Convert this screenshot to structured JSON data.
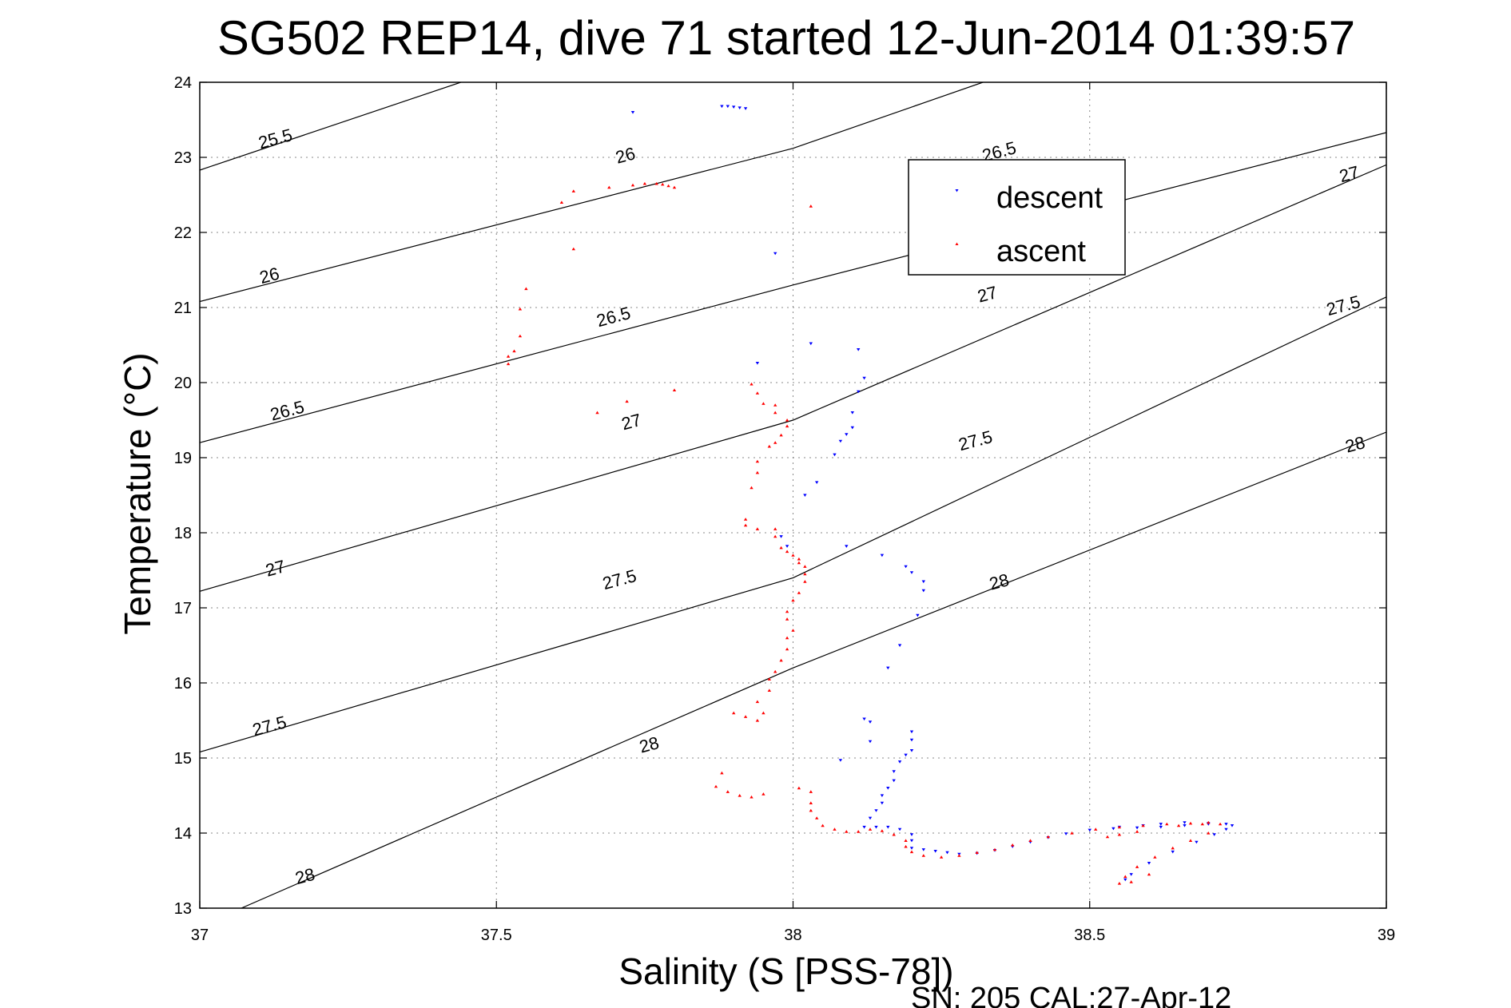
{
  "chart_data": {
    "type": "scatter",
    "title": "SG502 REP14, dive 71 started 12-Jun-2014 01:39:57",
    "xlabel": "Salinity (S [PSS-78])",
    "ylabel": "Temperature (°C)",
    "footer": "SN: 205  CAL:27-Apr-12",
    "xlim": [
      37,
      39
    ],
    "ylim": [
      13,
      24
    ],
    "xticks": [
      "37",
      "37.5",
      "38",
      "38.5",
      "39"
    ],
    "yticks": [
      "13",
      "14",
      "15",
      "16",
      "17",
      "18",
      "19",
      "20",
      "21",
      "22",
      "23",
      "24"
    ],
    "grid": true,
    "legend_position": "top-right",
    "contours": [
      {
        "label": "25.5",
        "values": [
          [
            37,
            22.83
          ],
          [
            37.44,
            24.0
          ]
        ],
        "label_at": [
          37.13,
          23.17
        ]
      },
      {
        "label": "26",
        "values": [
          [
            37,
            21.08
          ],
          [
            38.0,
            23.12
          ],
          [
            38.32,
            24.0
          ]
        ],
        "label_at": [
          37.12,
          21.35
        ]
      },
      {
        "label": "26",
        "values": [],
        "label_at": [
          37.72,
          22.95
        ]
      },
      {
        "label": "26.5",
        "values": [
          [
            37,
            19.2
          ],
          [
            38.0,
            21.3
          ],
          [
            39.0,
            23.33
          ],
          [
            39.0,
            24.0
          ]
        ],
        "label_at": [
          37.15,
          19.55
        ]
      },
      {
        "label": "26.5",
        "values": [],
        "label_at": [
          37.7,
          20.8
        ]
      },
      {
        "label": "26.5",
        "values": [],
        "label_at": [
          38.35,
          23.0
        ]
      },
      {
        "label": "27",
        "values": [
          [
            37,
            17.22
          ],
          [
            38.0,
            19.5
          ],
          [
            39.0,
            22.9
          ]
        ],
        "label_at": [
          37.13,
          17.45
        ]
      },
      {
        "label": "27",
        "values": [],
        "label_at": [
          37.73,
          19.4
        ]
      },
      {
        "label": "27",
        "values": [],
        "label_at": [
          38.33,
          21.1
        ]
      },
      {
        "label": "27",
        "values": [],
        "label_at": [
          38.94,
          22.7
        ]
      },
      {
        "label": "27.5",
        "values": [
          [
            37,
            15.08
          ],
          [
            38.0,
            17.4
          ],
          [
            39.0,
            21.14
          ]
        ],
        "label_at": [
          37.12,
          15.35
        ]
      },
      {
        "label": "27.5",
        "values": [],
        "label_at": [
          37.71,
          17.3
        ]
      },
      {
        "label": "27.5",
        "values": [],
        "label_at": [
          38.31,
          19.15
        ]
      },
      {
        "label": "27.5",
        "values": [],
        "label_at": [
          38.93,
          20.95
        ]
      },
      {
        "label": "28",
        "values": [
          [
            37.07,
            13.0
          ],
          [
            38.0,
            16.2
          ],
          [
            39.0,
            19.34
          ]
        ],
        "label_at": [
          37.18,
          13.35
        ]
      },
      {
        "label": "28",
        "values": [],
        "label_at": [
          37.76,
          15.1
        ]
      },
      {
        "label": "28",
        "values": [],
        "label_at": [
          38.35,
          17.27
        ]
      },
      {
        "label": "28",
        "values": [],
        "label_at": [
          38.95,
          19.1
        ]
      }
    ],
    "series": [
      {
        "name": "descent",
        "color": "#0000ff",
        "marker": "triangle-down",
        "points": [
          [
            37.73,
            23.6
          ],
          [
            37.88,
            23.68
          ],
          [
            37.89,
            23.68
          ],
          [
            37.9,
            23.67
          ],
          [
            37.91,
            23.66
          ],
          [
            37.92,
            23.65
          ],
          [
            37.97,
            21.72
          ],
          [
            38.03,
            20.52
          ],
          [
            38.11,
            20.44
          ],
          [
            38.12,
            20.06
          ],
          [
            38.11,
            19.88
          ],
          [
            38.1,
            19.6
          ],
          [
            38.1,
            19.4
          ],
          [
            38.09,
            19.31
          ],
          [
            38.08,
            19.22
          ],
          [
            38.07,
            19.04
          ],
          [
            38.04,
            18.67
          ],
          [
            38.02,
            18.5
          ],
          [
            37.94,
            20.26
          ],
          [
            37.98,
            17.95
          ],
          [
            37.99,
            17.82
          ],
          [
            38.09,
            17.82
          ],
          [
            38.15,
            17.7
          ],
          [
            38.19,
            17.55
          ],
          [
            38.2,
            17.47
          ],
          [
            38.22,
            17.35
          ],
          [
            38.22,
            17.23
          ],
          [
            38.21,
            16.9
          ],
          [
            38.18,
            16.5
          ],
          [
            38.16,
            16.2
          ],
          [
            38.12,
            15.52
          ],
          [
            38.13,
            15.48
          ],
          [
            38.13,
            15.22
          ],
          [
            38.08,
            14.97
          ],
          [
            38.2,
            15.35
          ],
          [
            38.2,
            15.24
          ],
          [
            38.2,
            15.1
          ],
          [
            38.19,
            15.04
          ],
          [
            38.18,
            14.95
          ],
          [
            38.17,
            14.82
          ],
          [
            38.17,
            14.7
          ],
          [
            38.16,
            14.6
          ],
          [
            38.15,
            14.5
          ],
          [
            38.15,
            14.4
          ],
          [
            38.14,
            14.3
          ],
          [
            38.13,
            14.2
          ],
          [
            38.12,
            14.08
          ],
          [
            38.14,
            14.08
          ],
          [
            38.16,
            14.08
          ],
          [
            38.18,
            14.05
          ],
          [
            38.2,
            13.98
          ],
          [
            38.2,
            13.9
          ],
          [
            38.2,
            13.8
          ],
          [
            38.22,
            13.78
          ],
          [
            38.24,
            13.76
          ],
          [
            38.26,
            13.74
          ],
          [
            38.28,
            13.72
          ],
          [
            38.31,
            13.73
          ],
          [
            38.34,
            13.77
          ],
          [
            38.37,
            13.82
          ],
          [
            38.4,
            13.88
          ],
          [
            38.43,
            13.94
          ],
          [
            38.46,
            13.99
          ],
          [
            38.5,
            14.04
          ],
          [
            38.54,
            14.06
          ],
          [
            38.58,
            14.07
          ],
          [
            38.62,
            14.08
          ],
          [
            38.66,
            14.1
          ],
          [
            38.7,
            14.12
          ],
          [
            38.73,
            14.12
          ],
          [
            38.74,
            14.1
          ],
          [
            38.73,
            14.05
          ],
          [
            38.71,
            13.98
          ],
          [
            38.68,
            13.88
          ],
          [
            38.64,
            13.75
          ],
          [
            38.6,
            13.6
          ],
          [
            38.57,
            13.45
          ],
          [
            38.56,
            13.38
          ],
          [
            38.62,
            14.12
          ],
          [
            38.66,
            14.14
          ],
          [
            38.7,
            14.13
          ],
          [
            38.59,
            14.1
          ],
          [
            38.55,
            14.08
          ]
        ]
      },
      {
        "name": "ascent",
        "color": "#ff0000",
        "marker": "triangle-up",
        "points": [
          [
            37.61,
            22.4
          ],
          [
            37.63,
            22.55
          ],
          [
            37.69,
            22.6
          ],
          [
            37.73,
            22.63
          ],
          [
            37.75,
            22.65
          ],
          [
            37.77,
            22.65
          ],
          [
            37.78,
            22.64
          ],
          [
            37.79,
            22.62
          ],
          [
            37.8,
            22.6
          ],
          [
            37.63,
            21.78
          ],
          [
            38.03,
            22.35
          ],
          [
            37.55,
            21.25
          ],
          [
            37.54,
            20.98
          ],
          [
            37.54,
            20.62
          ],
          [
            37.53,
            20.42
          ],
          [
            37.52,
            20.35
          ],
          [
            37.52,
            20.25
          ],
          [
            37.67,
            19.6
          ],
          [
            37.72,
            19.75
          ],
          [
            37.8,
            19.9
          ],
          [
            37.93,
            19.98
          ],
          [
            37.94,
            19.86
          ],
          [
            37.95,
            19.72
          ],
          [
            37.97,
            19.7
          ],
          [
            37.97,
            19.6
          ],
          [
            37.99,
            19.5
          ],
          [
            37.99,
            19.42
          ],
          [
            37.98,
            19.3
          ],
          [
            37.97,
            19.2
          ],
          [
            37.96,
            19.15
          ],
          [
            37.94,
            18.95
          ],
          [
            37.94,
            18.8
          ],
          [
            37.93,
            18.6
          ],
          [
            37.92,
            18.18
          ],
          [
            37.92,
            18.1
          ],
          [
            37.94,
            18.05
          ],
          [
            37.97,
            18.05
          ],
          [
            37.97,
            17.95
          ],
          [
            37.98,
            17.8
          ],
          [
            37.99,
            17.75
          ],
          [
            38.0,
            17.7
          ],
          [
            38.01,
            17.65
          ],
          [
            38.01,
            17.6
          ],
          [
            38.02,
            17.55
          ],
          [
            38.02,
            17.45
          ],
          [
            38.02,
            17.35
          ],
          [
            38.01,
            17.2
          ],
          [
            38.0,
            17.1
          ],
          [
            37.99,
            16.95
          ],
          [
            37.99,
            16.85
          ],
          [
            38.0,
            16.7
          ],
          [
            37.99,
            16.6
          ],
          [
            37.99,
            16.45
          ],
          [
            37.98,
            16.3
          ],
          [
            37.97,
            16.15
          ],
          [
            37.96,
            16.05
          ],
          [
            37.96,
            15.9
          ],
          [
            37.94,
            15.75
          ],
          [
            37.95,
            15.6
          ],
          [
            37.94,
            15.5
          ],
          [
            37.92,
            15.55
          ],
          [
            37.9,
            15.6
          ],
          [
            37.88,
            14.8
          ],
          [
            37.87,
            14.62
          ],
          [
            37.89,
            14.55
          ],
          [
            37.91,
            14.5
          ],
          [
            37.93,
            14.48
          ],
          [
            37.95,
            14.52
          ],
          [
            38.01,
            14.6
          ],
          [
            38.03,
            14.55
          ],
          [
            38.03,
            14.4
          ],
          [
            38.03,
            14.3
          ],
          [
            38.04,
            14.2
          ],
          [
            38.05,
            14.1
          ],
          [
            38.07,
            14.05
          ],
          [
            38.09,
            14.02
          ],
          [
            38.11,
            14.02
          ],
          [
            38.13,
            14.05
          ],
          [
            38.15,
            14.03
          ],
          [
            38.17,
            13.98
          ],
          [
            38.19,
            13.9
          ],
          [
            38.19,
            13.82
          ],
          [
            38.2,
            13.75
          ],
          [
            38.22,
            13.7
          ],
          [
            38.25,
            13.68
          ],
          [
            38.28,
            13.7
          ],
          [
            38.31,
            13.74
          ],
          [
            38.34,
            13.78
          ],
          [
            38.37,
            13.84
          ],
          [
            38.4,
            13.9
          ],
          [
            38.43,
            13.95
          ],
          [
            38.47,
            14.0
          ],
          [
            38.51,
            14.05
          ],
          [
            38.55,
            14.08
          ],
          [
            38.59,
            14.1
          ],
          [
            38.63,
            14.12
          ],
          [
            38.67,
            14.13
          ],
          [
            38.7,
            14.14
          ],
          [
            38.72,
            14.12
          ],
          [
            38.7,
            14.0
          ],
          [
            38.67,
            13.9
          ],
          [
            38.64,
            13.8
          ],
          [
            38.61,
            13.68
          ],
          [
            38.58,
            13.55
          ],
          [
            38.56,
            13.42
          ],
          [
            38.55,
            13.33
          ],
          [
            38.57,
            13.35
          ],
          [
            38.6,
            13.45
          ],
          [
            38.53,
            13.95
          ],
          [
            38.55,
            13.98
          ],
          [
            38.58,
            14.02
          ],
          [
            38.65,
            14.1
          ],
          [
            38.69,
            14.12
          ]
        ]
      }
    ]
  }
}
